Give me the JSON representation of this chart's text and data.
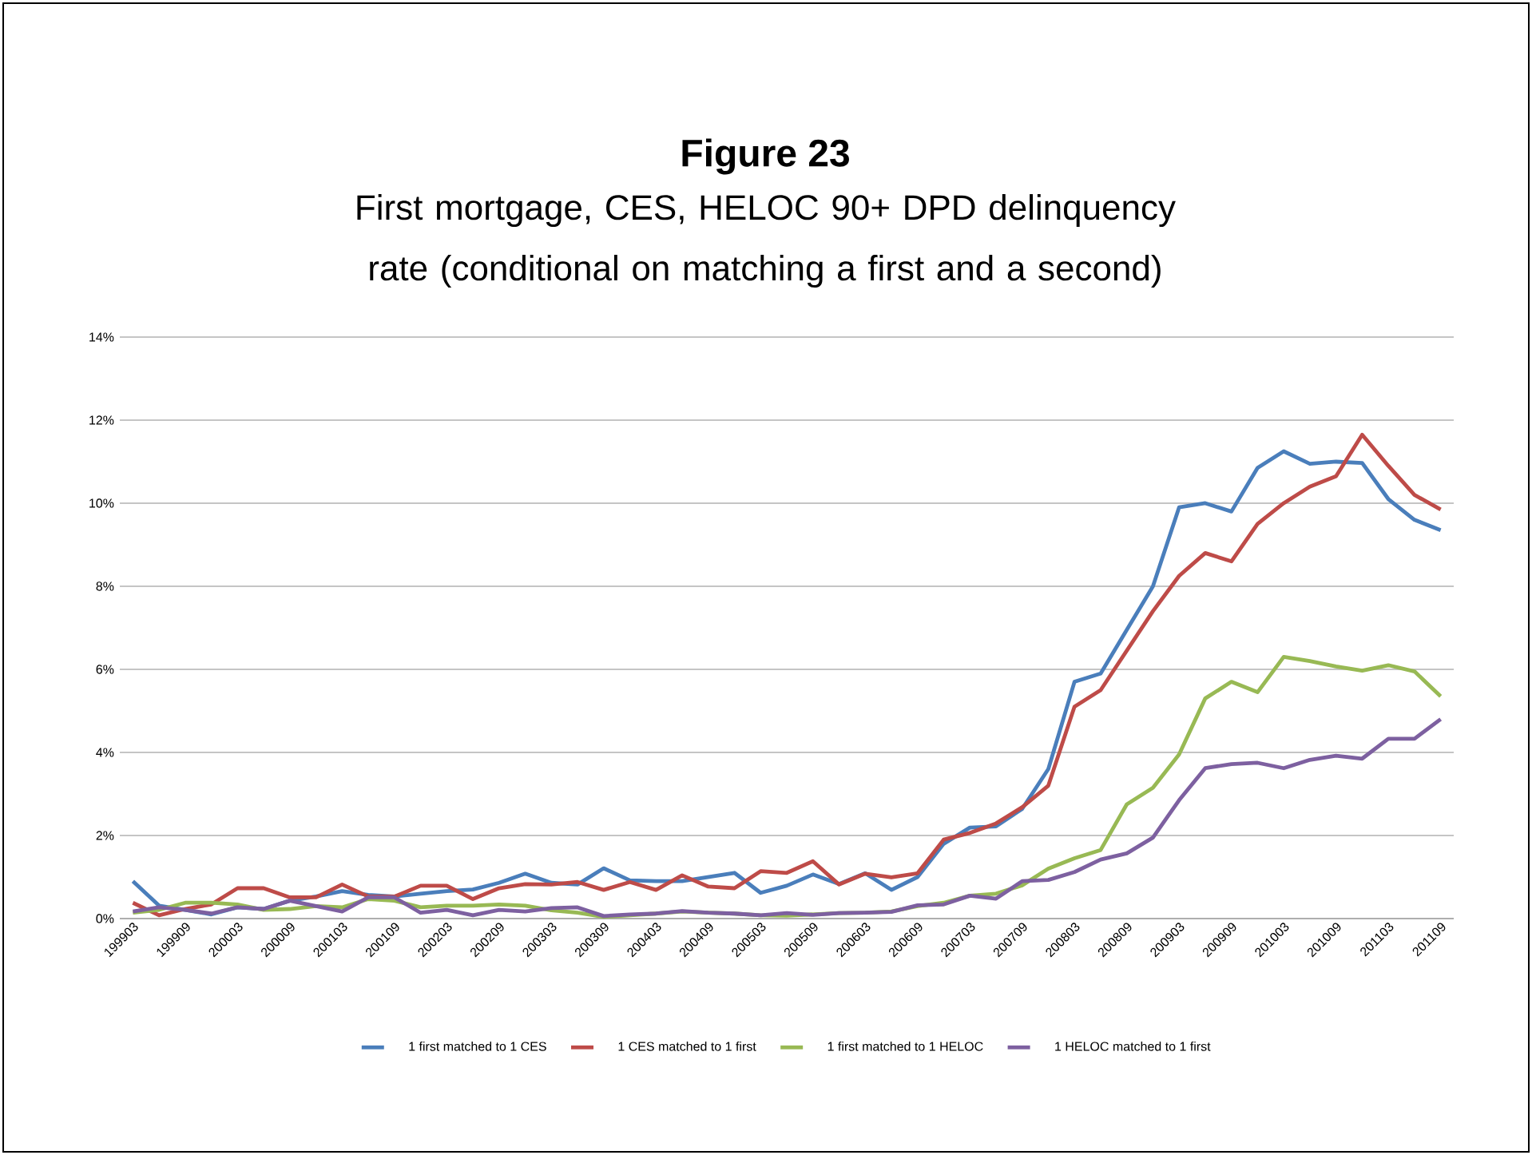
{
  "chart_data": {
    "type": "line",
    "title": "Figure 23",
    "subtitle": "First mortgage, CES, HELOC 90+ DPD delinquency rate (conditional on matching a first and a second)",
    "categories": [
      "199903",
      null,
      "199909",
      null,
      "200003",
      null,
      "200009",
      null,
      "200103",
      null,
      "200109",
      null,
      "200203",
      null,
      "200209",
      null,
      "200303",
      null,
      "200309",
      null,
      "200403",
      null,
      "200409",
      null,
      "200503",
      null,
      "200509",
      null,
      "200603",
      null,
      "200609",
      null,
      "200703",
      null,
      "200709",
      null,
      "200803",
      null,
      "200809",
      null,
      "200903",
      null,
      "200909",
      null,
      "201003",
      null,
      "201009",
      null,
      "201103",
      null,
      "201109"
    ],
    "series": [
      {
        "name": "1 first matched to 1 CES",
        "color": "#4a7ebb",
        "values": [
          0.9,
          0.31,
          0.21,
          0.1,
          0.27,
          0.23,
          0.43,
          0.53,
          0.66,
          0.57,
          0.53,
          0.6,
          0.66,
          0.7,
          0.86,
          1.08,
          0.86,
          0.82,
          1.21,
          0.92,
          0.9,
          0.9,
          1.0,
          1.1,
          0.62,
          0.79,
          1.06,
          0.83,
          1.09,
          0.69,
          1.0,
          1.8,
          2.19,
          2.22,
          2.64,
          3.6,
          5.7,
          5.9,
          6.95,
          8.0,
          9.9,
          10.0,
          9.8,
          10.85,
          11.25,
          10.95,
          11.0,
          10.97,
          10.1,
          9.6,
          9.35
        ]
      },
      {
        "name": "1 CES matched to 1 first",
        "color": "#be4b48",
        "values": [
          0.38,
          0.08,
          0.23,
          0.34,
          0.73,
          0.73,
          0.51,
          0.51,
          0.82,
          0.53,
          0.53,
          0.79,
          0.79,
          0.47,
          0.73,
          0.83,
          0.82,
          0.88,
          0.69,
          0.88,
          0.69,
          1.04,
          0.77,
          0.73,
          1.14,
          1.1,
          1.38,
          0.82,
          1.08,
          0.99,
          1.09,
          1.9,
          2.06,
          2.29,
          2.68,
          3.2,
          5.1,
          5.5,
          6.45,
          7.4,
          8.25,
          8.8,
          8.6,
          9.5,
          10.0,
          10.4,
          10.65,
          11.65,
          10.9,
          10.2,
          9.85
        ]
      },
      {
        "name": "1 first matched to 1 HELOC",
        "color": "#98b954",
        "values": [
          0.14,
          0.21,
          0.38,
          0.38,
          0.34,
          0.21,
          0.23,
          0.3,
          0.27,
          0.47,
          0.43,
          0.27,
          0.31,
          0.31,
          0.34,
          0.31,
          0.2,
          0.14,
          0.04,
          0.08,
          0.12,
          0.17,
          0.14,
          0.12,
          0.08,
          0.07,
          0.1,
          0.13,
          0.14,
          0.17,
          0.3,
          0.38,
          0.55,
          0.6,
          0.8,
          1.2,
          1.45,
          1.65,
          2.75,
          3.15,
          3.95,
          5.3,
          5.7,
          5.45,
          6.3,
          6.2,
          6.07,
          5.97,
          6.1,
          5.95,
          5.35
        ]
      },
      {
        "name": "1 HELOC matched to 1 first",
        "color": "#7d60a0",
        "values": [
          0.17,
          0.27,
          0.21,
          0.12,
          0.27,
          0.23,
          0.43,
          0.3,
          0.17,
          0.51,
          0.51,
          0.14,
          0.21,
          0.08,
          0.21,
          0.17,
          0.25,
          0.27,
          0.06,
          0.1,
          0.12,
          0.18,
          0.14,
          0.12,
          0.08,
          0.13,
          0.09,
          0.13,
          0.14,
          0.16,
          0.32,
          0.34,
          0.55,
          0.48,
          0.9,
          0.93,
          1.12,
          1.42,
          1.57,
          1.95,
          2.85,
          3.62,
          3.72,
          3.75,
          3.62,
          3.82,
          3.92,
          3.85,
          4.33,
          4.33,
          4.8
        ]
      }
    ],
    "ylim": [
      0,
      14
    ],
    "yticks": [
      {
        "value": 0,
        "label": "0%"
      },
      {
        "value": 2,
        "label": "2%"
      },
      {
        "value": 4,
        "label": "4%"
      },
      {
        "value": 6,
        "label": "6%"
      },
      {
        "value": 8,
        "label": "8%"
      },
      {
        "value": 10,
        "label": "10%"
      },
      {
        "value": 12,
        "label": "12%"
      },
      {
        "value": 14,
        "label": "14%"
      }
    ],
    "grid": "y",
    "legend": "bottom",
    "marker": "none",
    "line_style": "solid"
  }
}
